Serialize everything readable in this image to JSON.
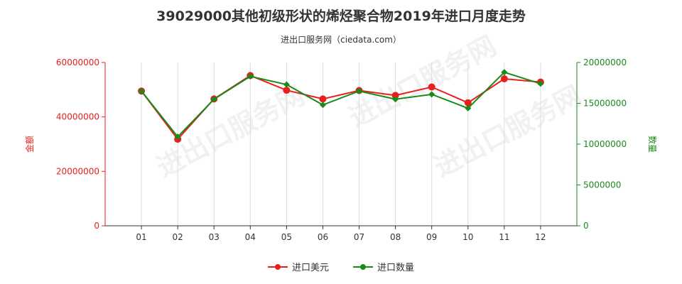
{
  "title": "39029000其他初级形状的烯烃聚合物2019年进口月度走势",
  "subtitle": "进出口服务网（ciedata.com）",
  "watermark": "进出口服务网",
  "chart_data": {
    "type": "line",
    "categories": [
      "01",
      "02",
      "03",
      "04",
      "05",
      "06",
      "07",
      "08",
      "09",
      "10",
      "11",
      "12"
    ],
    "series": [
      {
        "name": "进口美元",
        "axis": "left",
        "color": "#e8201c",
        "values": [
          49500000,
          31800000,
          46600000,
          55200000,
          49800000,
          46600000,
          49700000,
          47900000,
          51000000,
          45200000,
          54000000,
          52800000
        ]
      },
      {
        "name": "进口数量",
        "axis": "right",
        "color": "#1a8a1a",
        "values": [
          16500000,
          10900000,
          15500000,
          18300000,
          17300000,
          14800000,
          16500000,
          15500000,
          16100000,
          14400000,
          18800000,
          17400000
        ]
      }
    ],
    "y_left": {
      "label": "金额",
      "color": "#e8201c",
      "ylim": [
        0,
        60000000
      ],
      "ticks": [
        "0",
        "20000000",
        "40000000",
        "60000000"
      ]
    },
    "y_right": {
      "label": "数量",
      "color": "#1a8a1a",
      "ylim": [
        0,
        20000000
      ],
      "ticks": [
        "0",
        "5000000",
        "10000000",
        "15000000",
        "20000000"
      ]
    },
    "grid": "vertical",
    "legend_position": "bottom"
  }
}
